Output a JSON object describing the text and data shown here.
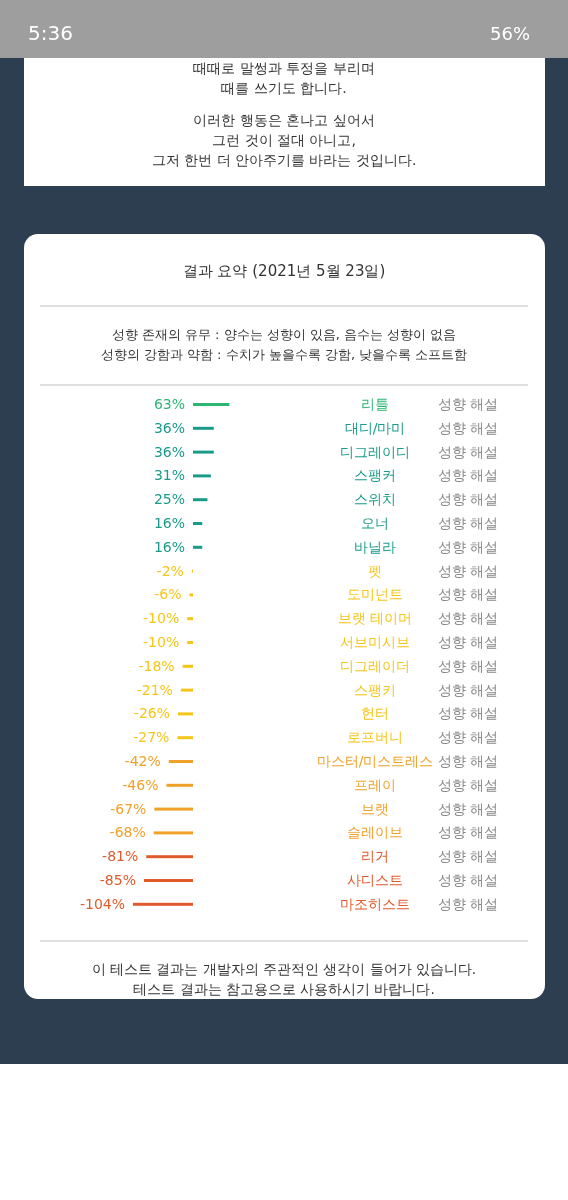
{
  "chart_data": {
    "type": "bar",
    "orientation": "horizontal",
    "title": "결과 요약 (2021년 5월 23일)",
    "subtitle": "성향 존재의 유무 : 양수는 성향이 있음, 음수는 성향이 없음\n성향의 강함과 약함 : 수치가 높을수록 강함, 낮을수록 소프트함",
    "categories": [
      "리틀",
      "대디/마미",
      "디그레이디",
      "스팽커",
      "스위치",
      "오너",
      "바닐라",
      "펫",
      "도미넌트",
      "브랫 테이머",
      "서브미시브",
      "디그레이더",
      "스팽키",
      "헌터",
      "로프버니",
      "마스터/미스트레스",
      "프레이",
      "브랫",
      "슬레이브",
      "리거",
      "사디스트",
      "마조히스트"
    ],
    "values": [
      63,
      36,
      36,
      31,
      25,
      16,
      16,
      -2,
      -6,
      -10,
      -10,
      -18,
      -21,
      -26,
      -27,
      -42,
      -46,
      -67,
      -68,
      -81,
      -85,
      -104
    ],
    "value_labels": [
      "63%",
      "36%",
      "36%",
      "31%",
      "25%",
      "16%",
      "16%",
      "-2%",
      "-6%",
      "-10%",
      "-10%",
      "-18%",
      "-21%",
      "-26%",
      "-27%",
      "-42%",
      "-46%",
      "-67%",
      "-68%",
      "-81%",
      "-85%",
      "-104%"
    ],
    "colors": [
      "#2bb673",
      "#1a9b8a",
      "#1a9b8a",
      "#1a9b8a",
      "#1a9b8a",
      "#1a9b8a",
      "#1a9b8a",
      "#f5c518",
      "#f5c518",
      "#f5c518",
      "#f5c518",
      "#f5c518",
      "#f5c518",
      "#f5c518",
      "#f5c518",
      "#f0a12a",
      "#f0a12a",
      "#f0a12a",
      "#f0a12a",
      "#e05a2b",
      "#e05a2b",
      "#e05a2b"
    ],
    "annotations": [
      "5:36",
      "56%",
      "때때로 말썽과 투정을 부리며",
      "때를 쓰기도 합니다.",
      "이러한 행동은 혼나고 싶어서",
      "그런 것이 절대 아니고,",
      "그저 한번 더 안아주기를 바라는 것입니다.",
      "이 테스트 결과는 개발자의 주관적인 생각이 들어가 있습니다.",
      "테스트 결과는 참고용으로 사용하시기 바랍니다.",
      "성향 해설",
      "성향 해설",
      "성향 해설",
      "성향 해설",
      "성향 해설",
      "성향 해설",
      "성향 해설",
      "성향 해설",
      "성향 해설",
      "성향 해설",
      "성향 해설",
      "성향 해설",
      "성향 해설",
      "성향 해설",
      "성향 해설",
      "성향 해설",
      "성향 해설",
      "성향 해설",
      "성향 해설",
      "성향 해설",
      "성향 해설",
      "성향 해설"
    ]
  }
}
